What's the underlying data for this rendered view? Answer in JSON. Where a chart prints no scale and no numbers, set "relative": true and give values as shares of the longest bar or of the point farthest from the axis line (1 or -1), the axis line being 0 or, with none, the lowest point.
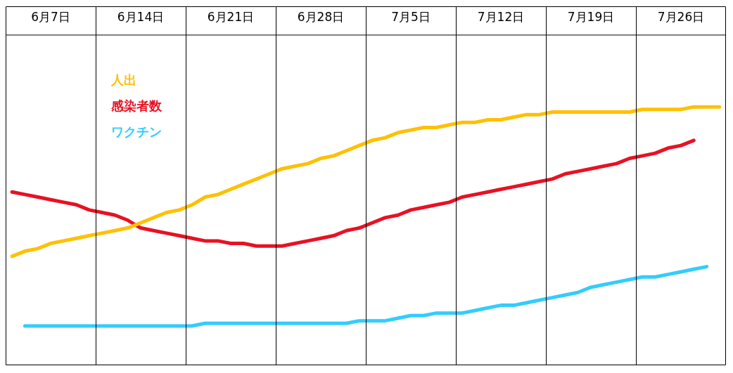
{
  "chart_data": {
    "type": "line",
    "relative": true,
    "grid": "x",
    "legend": "top left",
    "categories": [
      null,
      null,
      null,
      "6月7日",
      null,
      null,
      null,
      null,
      null,
      null,
      "6月14日",
      null,
      null,
      null,
      null,
      null,
      null,
      "6月21日",
      null,
      null,
      null,
      null,
      null,
      null,
      "6月28日",
      null,
      null,
      null,
      null,
      null,
      null,
      "7月5日",
      null,
      null,
      null,
      null,
      null,
      null,
      "7月12日",
      null,
      null,
      null,
      null,
      null,
      null,
      "7月19日",
      null,
      null,
      null,
      null,
      null,
      null,
      "7月26日",
      null,
      null,
      null
    ],
    "series": [
      {
        "name": "人出",
        "color": "#ffc000",
        "values": [
          0.42,
          0.44,
          0.45,
          0.47,
          0.48,
          0.49,
          0.5,
          0.51,
          0.52,
          0.53,
          0.55,
          0.57,
          0.59,
          0.6,
          0.62,
          0.65,
          0.66,
          0.68,
          0.7,
          0.72,
          0.74,
          0.76,
          0.77,
          0.78,
          0.8,
          0.81,
          0.83,
          0.85,
          0.87,
          0.88,
          0.9,
          0.91,
          0.92,
          0.92,
          0.93,
          0.94,
          0.94,
          0.95,
          0.95,
          0.96,
          0.97,
          0.97,
          0.98,
          0.98,
          0.98,
          0.98,
          0.98,
          0.98,
          0.98,
          0.99,
          0.99,
          0.99,
          0.99,
          1.0,
          1.0,
          1.0
        ]
      },
      {
        "name": "感染者数",
        "color": "#e81123",
        "values": [
          0.67,
          0.66,
          0.65,
          0.64,
          0.63,
          0.62,
          0.6,
          0.59,
          0.58,
          0.56,
          0.53,
          0.52,
          0.51,
          0.5,
          0.49,
          0.48,
          0.48,
          0.47,
          0.47,
          0.46,
          0.46,
          0.46,
          0.47,
          0.48,
          0.49,
          0.5,
          0.52,
          0.53,
          0.55,
          0.57,
          0.58,
          0.6,
          0.61,
          0.62,
          0.63,
          0.65,
          0.66,
          0.67,
          0.68,
          0.69,
          0.7,
          0.71,
          0.72,
          0.74,
          0.75,
          0.76,
          0.77,
          0.78,
          0.8,
          0.81,
          0.82,
          0.84,
          0.85,
          0.87,
          null,
          null
        ]
      },
      {
        "name": "ワクチン",
        "color": "#33ccff",
        "values": [
          null,
          0.15,
          0.15,
          0.15,
          0.15,
          0.15,
          0.15,
          0.15,
          0.15,
          0.15,
          0.15,
          0.15,
          0.15,
          0.15,
          0.15,
          0.16,
          0.16,
          0.16,
          0.16,
          0.16,
          0.16,
          0.16,
          0.16,
          0.16,
          0.16,
          0.16,
          0.16,
          0.17,
          0.17,
          0.17,
          0.18,
          0.19,
          0.19,
          0.2,
          0.2,
          0.2,
          0.21,
          0.22,
          0.23,
          0.23,
          0.24,
          0.25,
          0.26,
          0.27,
          0.28,
          0.3,
          0.31,
          0.32,
          0.33,
          0.34,
          0.34,
          0.35,
          0.36,
          0.37,
          0.38,
          null
        ]
      }
    ]
  }
}
